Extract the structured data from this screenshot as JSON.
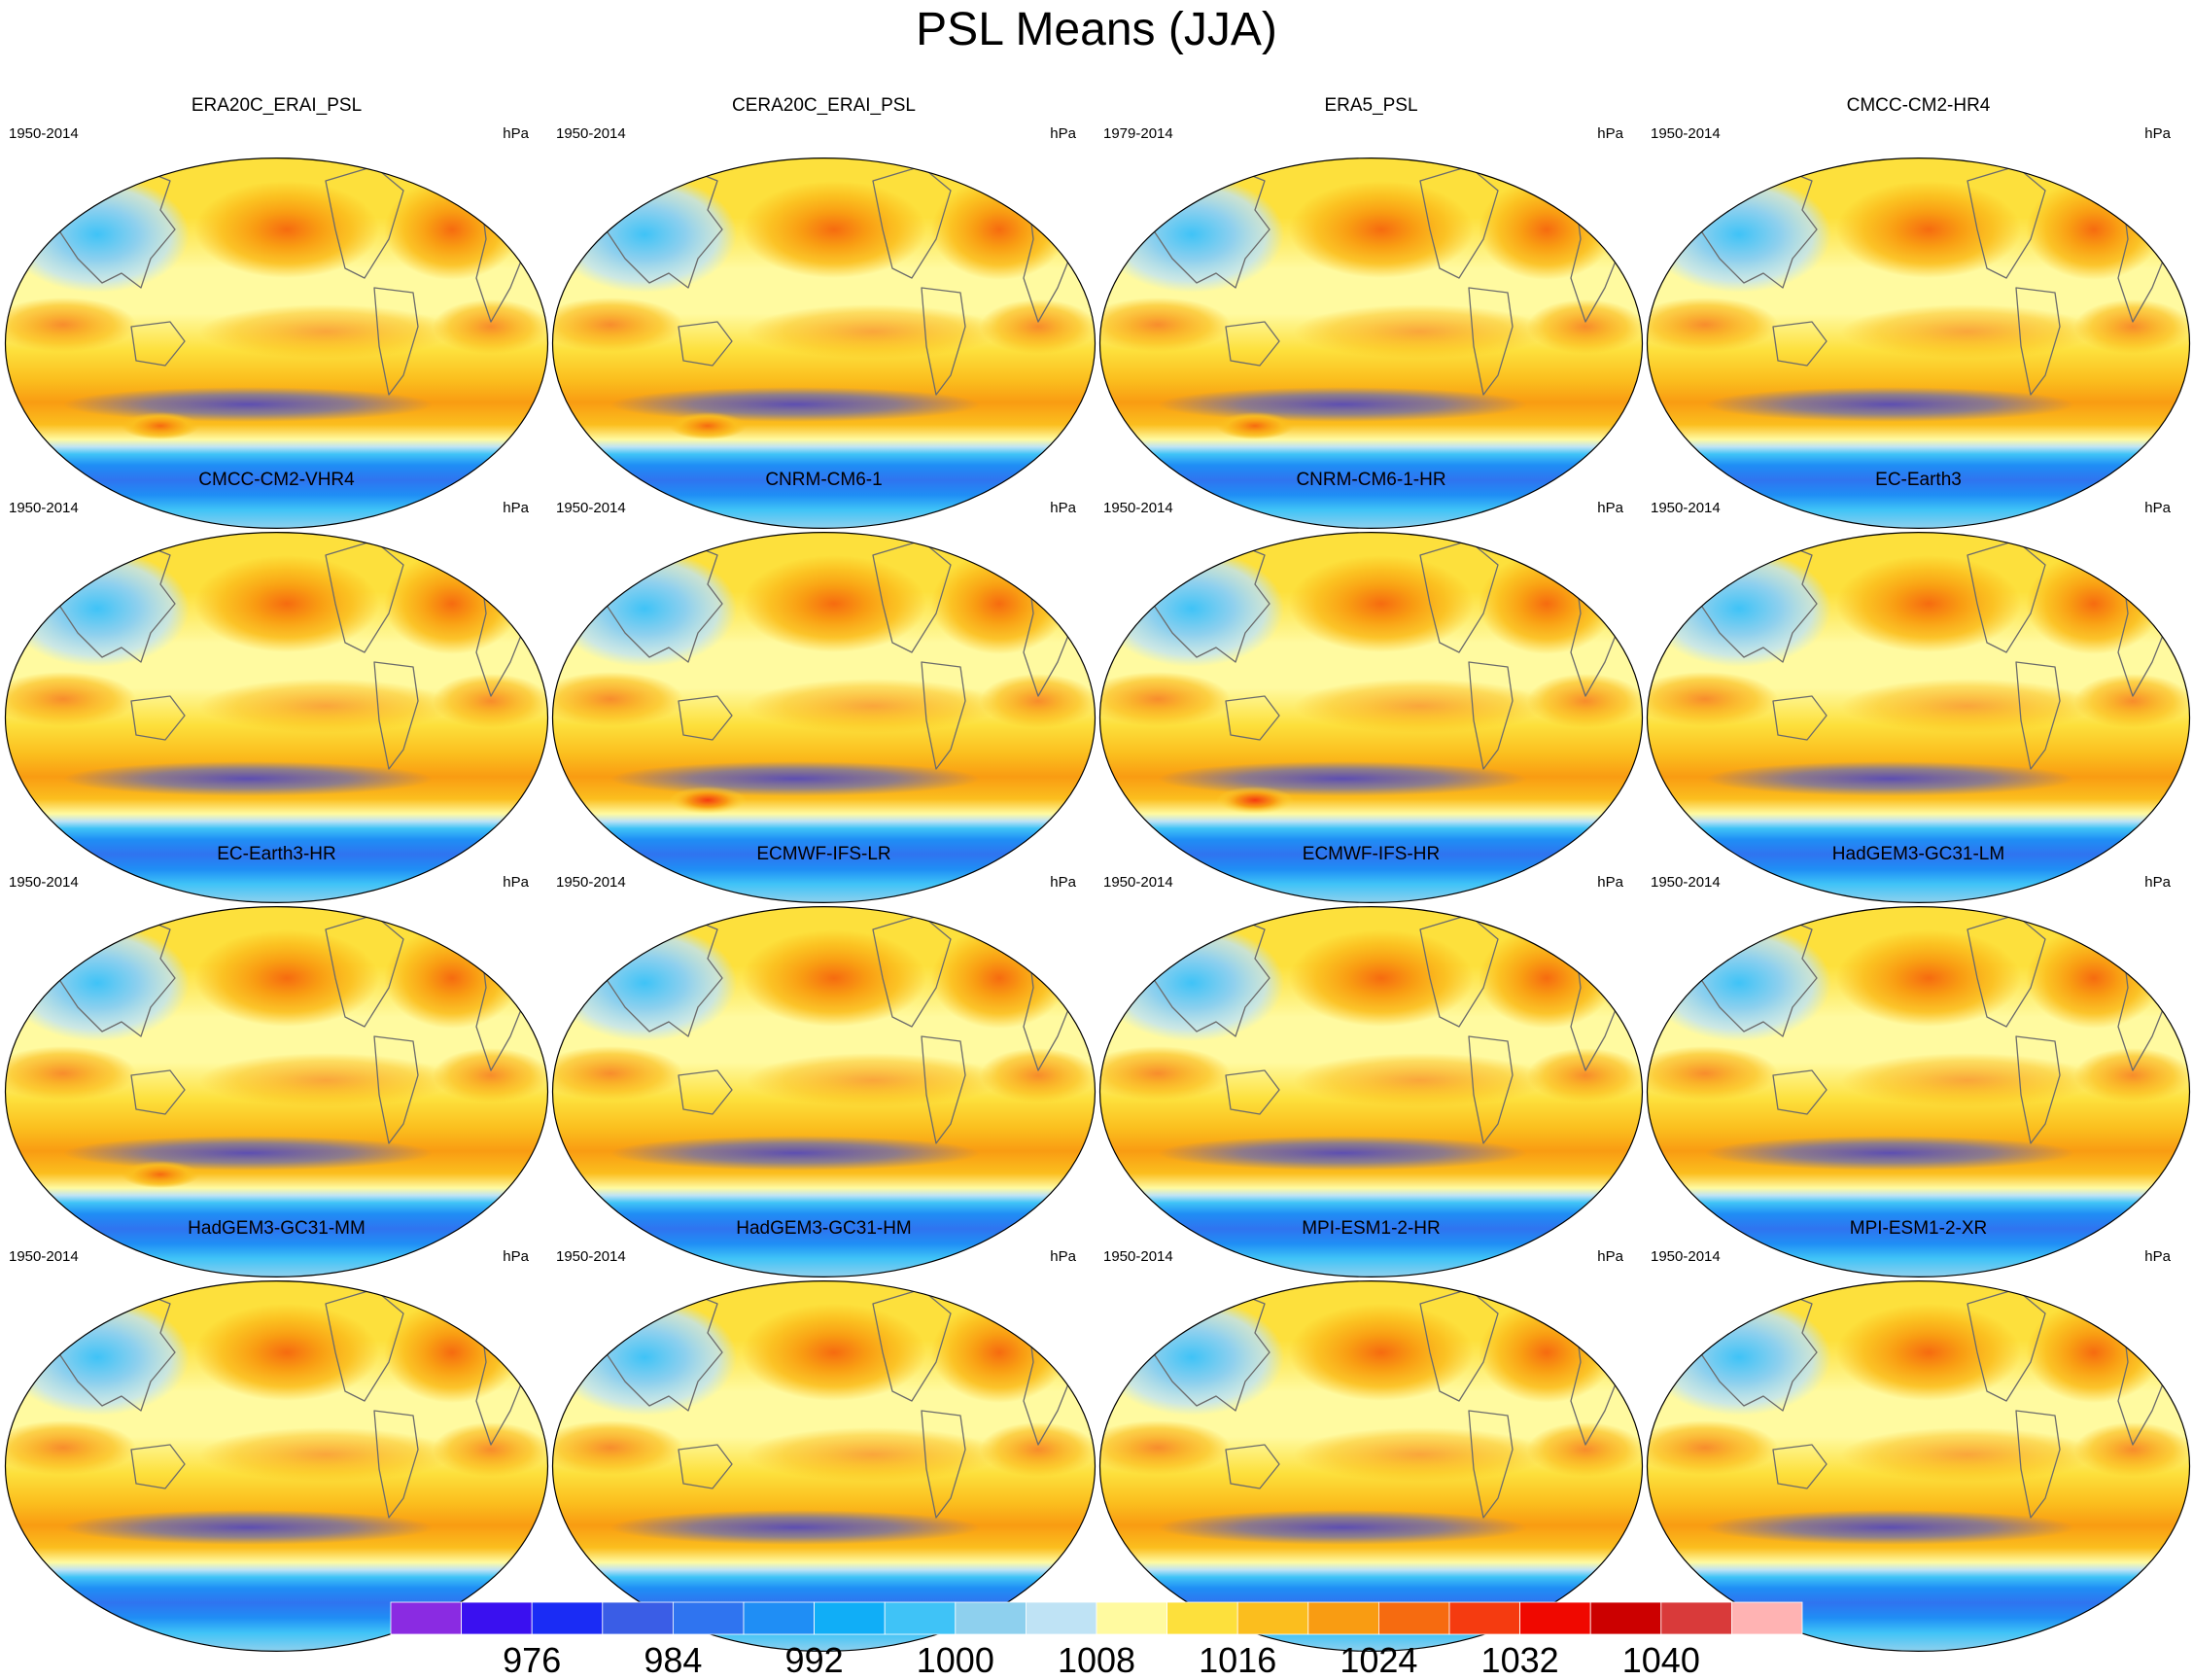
{
  "chart_data": {
    "type": "heatmap",
    "title": "PSL Means (JJA)",
    "units": "hPa",
    "projection": "Robinson, Pacific-centred world map",
    "panels": [
      {
        "title": "ERA20C_ERAI_PSL",
        "period": "1950-2014"
      },
      {
        "title": "CERA20C_ERAI_PSL",
        "period": "1950-2014"
      },
      {
        "title": "ERA5_PSL",
        "period": "1979-2014"
      },
      {
        "title": "CMCC-CM2-HR4",
        "period": "1950-2014"
      },
      {
        "title": "CMCC-CM2-VHR4",
        "period": "1950-2014"
      },
      {
        "title": "CNRM-CM6-1",
        "period": "1950-2014"
      },
      {
        "title": "CNRM-CM6-1-HR",
        "period": "1950-2014"
      },
      {
        "title": "EC-Earth3",
        "period": "1950-2014"
      },
      {
        "title": "EC-Earth3-HR",
        "period": "1950-2014"
      },
      {
        "title": "ECMWF-IFS-LR",
        "period": "1950-2014"
      },
      {
        "title": "ECMWF-IFS-HR",
        "period": "1950-2014"
      },
      {
        "title": "HadGEM3-GC31-LM",
        "period": "1950-2014"
      },
      {
        "title": "HadGEM3-GC31-MM",
        "period": "1950-2014"
      },
      {
        "title": "HadGEM3-GC31-HM",
        "period": "1950-2014"
      },
      {
        "title": "MPI-ESM1-2-HR",
        "period": "1950-2014"
      },
      {
        "title": "MPI-ESM1-2-XR",
        "period": "1950-2014"
      }
    ],
    "colorbar": {
      "colors": [
        "#8a2be2",
        "#3a10f0",
        "#1a2cf5",
        "#3a5de6",
        "#2f74f0",
        "#1f8ef5",
        "#10aef7",
        "#3fc3f7",
        "#8ed0ee",
        "#bfe3f5",
        "#fffaa0",
        "#fde03c",
        "#fbbe1e",
        "#f99c12",
        "#f66b10",
        "#f53b10",
        "#f00800",
        "#cc0000",
        "#d93a3a",
        "#ffb3b3"
      ],
      "boundaries": [
        972,
        974,
        976,
        980,
        984,
        988,
        992,
        996,
        1000,
        1004,
        1008,
        1012,
        1016,
        1020,
        1024,
        1028,
        1032,
        1036,
        1040,
        1044,
        1048
      ],
      "tick_labels": [
        "976",
        "984",
        "992",
        "1000",
        "1008",
        "1016",
        "1024",
        "1032",
        "1040"
      ],
      "tick_values": [
        976,
        984,
        992,
        1000,
        1008,
        1016,
        1024,
        1032,
        1040
      ]
    }
  }
}
